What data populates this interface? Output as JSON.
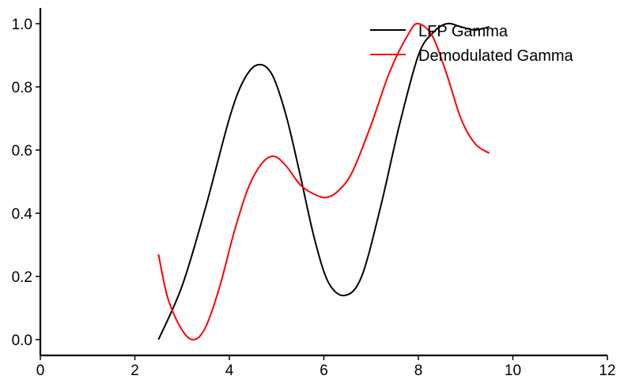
{
  "chart_data": {
    "type": "line",
    "title": "",
    "xlabel": "",
    "ylabel": "",
    "xlim": [
      0,
      12
    ],
    "ylim": [
      -0.05,
      1.05
    ],
    "xticks": [
      0,
      2,
      4,
      6,
      8,
      10,
      12
    ],
    "yticks": [
      0.0,
      0.2,
      0.4,
      0.6,
      0.8,
      1.0
    ],
    "xtick_labels": [
      "0",
      "2",
      "4",
      "6",
      "8",
      "10",
      "12"
    ],
    "ytick_labels": [
      "0.0",
      "0.2",
      "0.4",
      "0.6",
      "0.8",
      "1.0"
    ],
    "grid": false,
    "legend_position": "top-right",
    "series": [
      {
        "name": "LFP Gamma",
        "color": "#000000",
        "x": [
          2.5,
          3.0,
          3.5,
          4.0,
          4.3,
          4.6,
          4.9,
          5.2,
          5.5,
          5.8,
          6.1,
          6.45,
          6.8,
          7.2,
          7.6,
          8.0,
          8.3,
          8.6,
          8.9,
          9.2,
          9.5
        ],
        "y": [
          0.0,
          0.17,
          0.42,
          0.7,
          0.82,
          0.87,
          0.84,
          0.71,
          0.52,
          0.32,
          0.18,
          0.14,
          0.2,
          0.42,
          0.68,
          0.9,
          0.97,
          1.0,
          0.99,
          0.98,
          0.99
        ]
      },
      {
        "name": "Demodulated Gamma",
        "color": "#ff0000",
        "x": [
          2.5,
          2.7,
          3.0,
          3.25,
          3.5,
          3.8,
          4.1,
          4.4,
          4.7,
          4.95,
          5.2,
          5.5,
          5.8,
          6.05,
          6.3,
          6.6,
          7.0,
          7.4,
          7.8,
          8.0,
          8.3,
          8.6,
          8.9,
          9.2,
          9.5
        ],
        "y": [
          0.27,
          0.13,
          0.03,
          0.0,
          0.04,
          0.17,
          0.34,
          0.48,
          0.56,
          0.58,
          0.55,
          0.49,
          0.46,
          0.45,
          0.47,
          0.53,
          0.68,
          0.85,
          0.97,
          1.0,
          0.96,
          0.84,
          0.7,
          0.62,
          0.59
        ]
      }
    ]
  }
}
